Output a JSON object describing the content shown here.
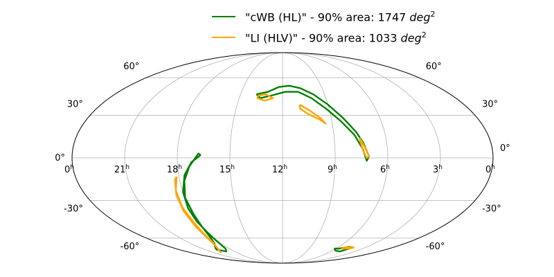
{
  "chart_data": {
    "type": "line",
    "projection": "mollweide",
    "title": "",
    "grid": true,
    "legend_placement": "top-center",
    "ra_ticks": [
      {
        "label": "0",
        "ra": 360
      },
      {
        "label": "21",
        "ra": 315
      },
      {
        "label": "18",
        "ra": 270
      },
      {
        "label": "15",
        "ra": 225
      },
      {
        "label": "12",
        "ra": 180
      },
      {
        "label": "9",
        "ra": 135
      },
      {
        "label": "6",
        "ra": 90
      },
      {
        "label": "3",
        "ra": 45
      },
      {
        "label": "0",
        "ra": 0
      }
    ],
    "ra_unit": "h",
    "dec_ticks": [
      {
        "label": "60°",
        "dec": 60
      },
      {
        "label": "30°",
        "dec": 30
      },
      {
        "label": "0°",
        "dec": 0
      },
      {
        "label": "-30°",
        "dec": -30
      },
      {
        "label": "-60°",
        "dec": -60
      }
    ],
    "series": [
      {
        "name": "\"cWB (HL)\" - 90% area: 1747",
        "unit_label": "deg",
        "unit_power": "2",
        "color": "#008000",
        "contours": [
          [
            [
              208,
              46
            ],
            [
              196,
              48
            ],
            [
              184,
              52
            ],
            [
              172,
              53
            ],
            [
              160,
              51
            ],
            [
              147,
              46
            ],
            [
              135,
              38
            ],
            [
              124,
              28
            ],
            [
              115,
              18
            ],
            [
              110,
              10
            ],
            [
              106,
              1
            ],
            [
              108,
              -2
            ],
            [
              111,
              6
            ],
            [
              117,
              16
            ],
            [
              127,
              26
            ],
            [
              138,
              35
            ],
            [
              150,
              43
            ],
            [
              163,
              48
            ],
            [
              177,
              48
            ],
            [
              192,
              45
            ],
            [
              203,
              43
            ],
            [
              208,
              46
            ]
          ],
          [
            [
              250,
              2
            ],
            [
              258,
              -3
            ],
            [
              265,
              -12
            ],
            [
              270,
              -24
            ],
            [
              272,
              -36
            ],
            [
              272,
              -46
            ],
            [
              271,
              -56
            ],
            [
              272,
              -63
            ],
            [
              276,
              -70
            ],
            [
              285,
              -73
            ],
            [
              295,
              -71
            ],
            [
              290,
              -69
            ],
            [
              280,
              -65
            ],
            [
              274,
              -59
            ],
            [
              271,
              -50
            ],
            [
              270,
              -40
            ],
            [
              270,
              -28
            ],
            [
              266,
              -16
            ],
            [
              260,
              -6
            ],
            [
              252,
              3
            ],
            [
              250,
              2
            ]
          ],
          [
            [
              85,
              -70
            ],
            [
              74,
              -68
            ],
            [
              66,
              -69
            ],
            [
              73,
              -73
            ],
            [
              85,
              -72
            ],
            [
              92,
              -70
            ],
            [
              85,
              -70
            ]
          ]
        ]
      },
      {
        "name": "\"LI (HLV)\" - 90% area: 1033",
        "unit_label": "deg",
        "unit_power": "2",
        "color": "#FFA500",
        "contours": [
          [
            [
              206,
              45
            ],
            [
              198,
              46
            ],
            [
              190,
              43
            ],
            [
              198,
              41
            ],
            [
              206,
              43
            ],
            [
              206,
              45
            ]
          ],
          [
            [
              163,
              38
            ],
            [
              153,
              33
            ],
            [
              145,
              28
            ],
            [
              141,
              24
            ],
            [
              146,
              27
            ],
            [
              156,
              31
            ],
            [
              163,
              35
            ],
            [
              163,
              38
            ]
          ],
          [
            [
              113,
              14
            ],
            [
              109,
              7
            ],
            [
              106,
              1
            ],
            [
              108,
              0
            ],
            [
              111,
              5
            ],
            [
              113,
              14
            ]
          ],
          [
            [
              272,
              -13
            ],
            [
              276,
              -23
            ],
            [
              277,
              -35
            ],
            [
              276,
              -47
            ],
            [
              277,
              -56
            ],
            [
              280,
              -64
            ],
            [
              289,
              -70
            ],
            [
              300,
              -74
            ],
            [
              294,
              -72
            ],
            [
              284,
              -67
            ],
            [
              279,
              -60
            ],
            [
              278,
              -50
            ],
            [
              278,
              -38
            ],
            [
              277,
              -26
            ],
            [
              274,
              -15
            ],
            [
              272,
              -13
            ]
          ],
          [
            [
              80,
              -69
            ],
            [
              70,
              -68
            ],
            [
              64,
              -69
            ],
            [
              70,
              -70
            ],
            [
              80,
              -70
            ],
            [
              80,
              -69
            ]
          ]
        ]
      }
    ]
  }
}
